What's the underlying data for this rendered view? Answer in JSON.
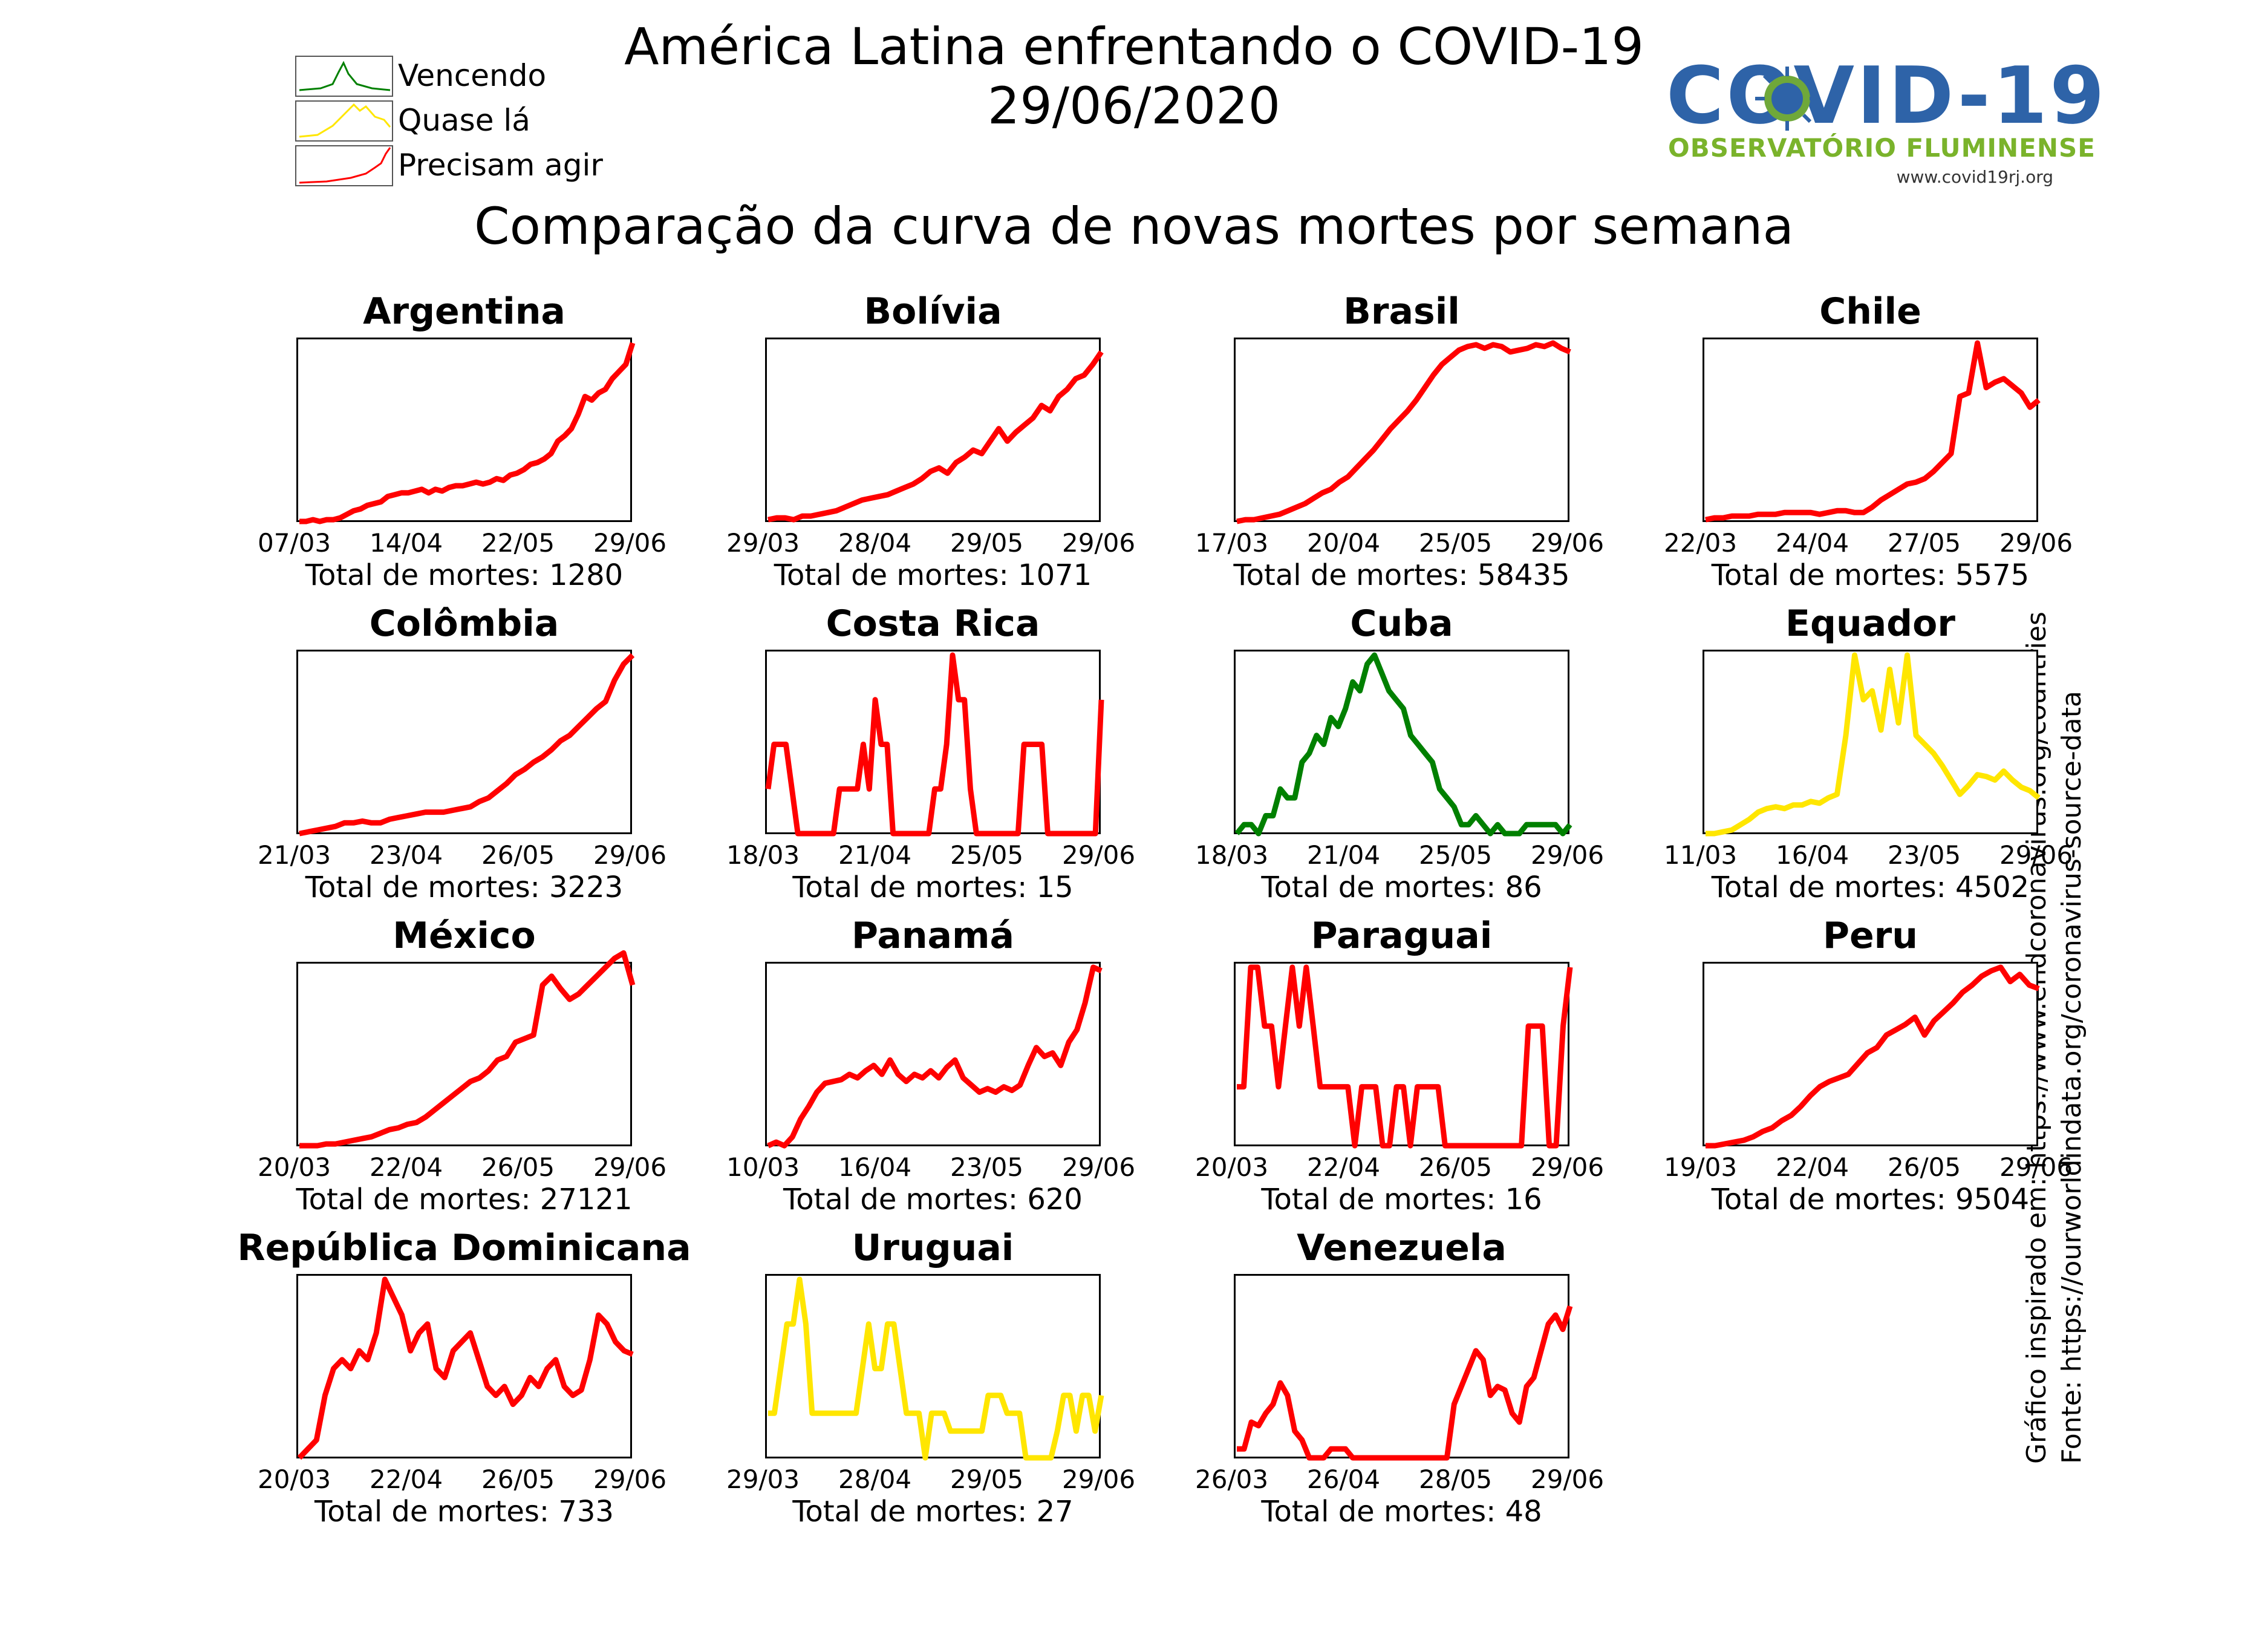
{
  "title": "América Latina enfrentando o COVID-19",
  "date": "29/06/2020",
  "subtitle": "Comparação da curva de novas mortes por semana",
  "legend": [
    {
      "label": "Vencendo",
      "color": "#008000",
      "icon": "green-bell-curve"
    },
    {
      "label": "Quase lá",
      "color": "#ffe600",
      "icon": "yellow-plateau-curve"
    },
    {
      "label": "Precisam agir",
      "color": "#ff0000",
      "icon": "red-rising-curve"
    }
  ],
  "logo": {
    "title": "COVID-19",
    "subtitle": "OBSERVATÓRIO FLUMINENSE",
    "url": "www.covid19rj.org",
    "colors": {
      "title": "#2e63a8",
      "subtitle": "#7ab32b"
    }
  },
  "side_notes": {
    "inspired": "Gráfico inspirado em: https://www.endcoronavirus.org/countries",
    "source": "Fonte: https://ourworldindata.org/coronavirus-source-data"
  },
  "total_prefix": "Total de mortes: ",
  "chart_data": [
    {
      "type": "line",
      "title": "Argentina",
      "status": "Precisam agir",
      "color": "#ff0000",
      "x_ticks": [
        "07/03",
        "14/04",
        "22/05",
        "29/06"
      ],
      "total": "1280",
      "values": [
        0,
        0,
        1,
        0,
        1,
        1,
        2,
        4,
        6,
        7,
        9,
        10,
        11,
        14,
        15,
        16,
        16,
        17,
        18,
        16,
        18,
        17,
        19,
        20,
        20,
        21,
        22,
        21,
        22,
        24,
        23,
        26,
        27,
        29,
        32,
        33,
        35,
        38,
        45,
        48,
        52,
        60,
        70,
        68,
        72,
        74,
        80,
        84,
        88,
        100
      ]
    },
    {
      "type": "line",
      "title": "Bolívia",
      "status": "Precisam agir",
      "color": "#ff0000",
      "x_ticks": [
        "29/03",
        "28/04",
        "29/05",
        "29/06"
      ],
      "total": "1071",
      "values": [
        1,
        2,
        2,
        1,
        3,
        3,
        4,
        5,
        6,
        8,
        10,
        12,
        13,
        14,
        15,
        17,
        19,
        21,
        24,
        28,
        30,
        27,
        33,
        36,
        40,
        38,
        45,
        52,
        45,
        50,
        54,
        58,
        65,
        62,
        70,
        74,
        80,
        82,
        88,
        95
      ]
    },
    {
      "type": "line",
      "title": "Brasil",
      "status": "Precisam agir",
      "color": "#ff0000",
      "x_ticks": [
        "17/03",
        "20/04",
        "25/05",
        "29/06"
      ],
      "total": "58435",
      "values": [
        0,
        1,
        1,
        2,
        3,
        4,
        6,
        8,
        10,
        13,
        16,
        18,
        22,
        25,
        30,
        35,
        40,
        46,
        52,
        57,
        62,
        68,
        75,
        82,
        88,
        92,
        96,
        98,
        99,
        97,
        99,
        98,
        95,
        96,
        97,
        99,
        98,
        100,
        97,
        95
      ]
    },
    {
      "type": "line",
      "title": "Chile",
      "status": "Precisam agir",
      "color": "#ff0000",
      "x_ticks": [
        "22/03",
        "24/04",
        "27/05",
        "29/06"
      ],
      "total": "5575",
      "values": [
        1,
        2,
        2,
        3,
        3,
        3,
        4,
        4,
        4,
        5,
        5,
        5,
        5,
        4,
        5,
        6,
        6,
        5,
        5,
        8,
        12,
        15,
        18,
        21,
        22,
        24,
        28,
        33,
        38,
        70,
        72,
        100,
        75,
        78,
        80,
        76,
        72,
        64,
        68
      ]
    },
    {
      "type": "line",
      "title": "Colômbia",
      "status": "Precisam agir",
      "color": "#ff0000",
      "x_ticks": [
        "21/03",
        "23/04",
        "26/05",
        "29/06"
      ],
      "total": "3223",
      "values": [
        0,
        1,
        2,
        3,
        4,
        6,
        6,
        7,
        6,
        6,
        8,
        9,
        10,
        11,
        12,
        12,
        12,
        13,
        14,
        15,
        18,
        20,
        24,
        28,
        33,
        36,
        40,
        43,
        47,
        52,
        55,
        60,
        65,
        70,
        74,
        86,
        95,
        100
      ]
    },
    {
      "type": "line",
      "title": "Costa Rica",
      "status": "Precisam agir",
      "color": "#ff0000",
      "x_ticks": [
        "18/03",
        "21/04",
        "25/05",
        "29/06"
      ],
      "total": "15",
      "values": [
        25,
        50,
        50,
        50,
        25,
        0,
        0,
        0,
        0,
        0,
        0,
        0,
        25,
        25,
        25,
        25,
        50,
        25,
        75,
        50,
        50,
        0,
        0,
        0,
        0,
        0,
        0,
        0,
        25,
        25,
        50,
        100,
        75,
        75,
        25,
        0,
        0,
        0,
        0,
        0,
        0,
        0,
        0,
        50,
        50,
        50,
        50,
        0,
        0,
        0,
        0,
        0,
        0,
        0,
        0,
        0,
        75
      ]
    },
    {
      "type": "line",
      "title": "Cuba",
      "status": "Vencendo",
      "color": "#008000",
      "x_ticks": [
        "18/03",
        "21/04",
        "25/05",
        "29/06"
      ],
      "total": "86",
      "values": [
        0,
        5,
        5,
        0,
        10,
        10,
        25,
        20,
        20,
        40,
        45,
        55,
        50,
        65,
        60,
        70,
        85,
        80,
        95,
        100,
        90,
        80,
        75,
        70,
        55,
        50,
        45,
        40,
        25,
        20,
        15,
        5,
        5,
        10,
        5,
        0,
        5,
        0,
        0,
        0,
        5,
        5,
        5,
        5,
        5,
        0,
        5
      ]
    },
    {
      "type": "line",
      "title": "Equador",
      "status": "Quase lá",
      "color": "#ffe600",
      "x_ticks": [
        "11/03",
        "16/04",
        "23/05",
        "29/06"
      ],
      "total": "4502",
      "values": [
        0,
        0,
        1,
        2,
        5,
        8,
        12,
        14,
        15,
        14,
        16,
        16,
        18,
        17,
        20,
        22,
        55,
        100,
        75,
        80,
        58,
        92,
        62,
        100,
        55,
        50,
        45,
        38,
        30,
        22,
        27,
        33,
        32,
        30,
        35,
        30,
        26,
        24,
        20
      ]
    },
    {
      "type": "line",
      "title": "México",
      "status": "Precisam agir",
      "color": "#ff0000",
      "x_ticks": [
        "20/03",
        "22/04",
        "26/05",
        "29/06"
      ],
      "total": "27121",
      "values": [
        0,
        0,
        0,
        1,
        1,
        2,
        3,
        4,
        5,
        7,
        9,
        10,
        12,
        13,
        16,
        20,
        24,
        28,
        32,
        36,
        38,
        42,
        48,
        50,
        58,
        60,
        62,
        90,
        95,
        88,
        82,
        85,
        90,
        95,
        100,
        105,
        108,
        90
      ]
    },
    {
      "type": "line",
      "title": "Panamá",
      "status": "Precisam agir",
      "color": "#ff0000",
      "x_ticks": [
        "10/03",
        "16/04",
        "23/05",
        "29/06"
      ],
      "total": "620",
      "values": [
        0,
        2,
        0,
        5,
        15,
        22,
        30,
        35,
        36,
        37,
        40,
        38,
        42,
        45,
        40,
        48,
        40,
        36,
        40,
        38,
        42,
        38,
        44,
        48,
        38,
        34,
        30,
        32,
        30,
        33,
        31,
        34,
        45,
        55,
        50,
        52,
        45,
        58,
        65,
        80,
        100,
        98
      ]
    },
    {
      "type": "line",
      "title": "Paraguai",
      "status": "Precisam agir",
      "color": "#ff0000",
      "x_ticks": [
        "20/03",
        "22/04",
        "26/05",
        "29/06"
      ],
      "total": "16",
      "values": [
        33,
        33,
        100,
        100,
        67,
        67,
        33,
        67,
        100,
        67,
        100,
        67,
        33,
        33,
        33,
        33,
        33,
        0,
        33,
        33,
        33,
        0,
        0,
        33,
        33,
        0,
        33,
        33,
        33,
        33,
        0,
        0,
        0,
        0,
        0,
        0,
        0,
        0,
        0,
        0,
        0,
        0,
        67,
        67,
        67,
        0,
        0,
        67,
        100
      ]
    },
    {
      "type": "line",
      "title": "Peru",
      "status": "Precisam agir",
      "color": "#ff0000",
      "x_ticks": [
        "19/03",
        "22/04",
        "26/05",
        "29/06"
      ],
      "total": "9504",
      "values": [
        0,
        0,
        1,
        2,
        3,
        5,
        8,
        10,
        14,
        17,
        22,
        28,
        33,
        36,
        38,
        40,
        46,
        52,
        55,
        62,
        65,
        68,
        72,
        62,
        70,
        75,
        80,
        86,
        90,
        95,
        98,
        100,
        92,
        96,
        90,
        88
      ]
    },
    {
      "type": "line",
      "title": "República Dominicana",
      "status": "Precisam agir",
      "color": "#ff0000",
      "x_ticks": [
        "20/03",
        "22/04",
        "26/05",
        "29/06"
      ],
      "total": "733",
      "values": [
        0,
        5,
        10,
        35,
        50,
        55,
        50,
        60,
        55,
        70,
        100,
        90,
        80,
        60,
        70,
        75,
        50,
        45,
        60,
        65,
        70,
        55,
        40,
        35,
        40,
        30,
        35,
        45,
        40,
        50,
        55,
        40,
        35,
        38,
        55,
        80,
        75,
        65,
        60,
        58
      ]
    },
    {
      "type": "line",
      "title": "Uruguai",
      "status": "Quase lá",
      "color": "#ffe600",
      "x_ticks": [
        "29/03",
        "28/04",
        "29/05",
        "29/06"
      ],
      "total": "27",
      "values": [
        25,
        25,
        50,
        75,
        75,
        100,
        75,
        25,
        25,
        25,
        25,
        25,
        25,
        25,
        25,
        50,
        75,
        50,
        50,
        75,
        75,
        50,
        25,
        25,
        25,
        0,
        25,
        25,
        25,
        15,
        15,
        15,
        15,
        15,
        15,
        35,
        35,
        35,
        25,
        25,
        25,
        0,
        0,
        0,
        0,
        0,
        15,
        35,
        35,
        15,
        35,
        35,
        15,
        35
      ]
    },
    {
      "type": "line",
      "title": "Venezuela",
      "status": "Precisam agir",
      "color": "#ff0000",
      "x_ticks": [
        "26/03",
        "26/04",
        "28/05",
        "29/06"
      ],
      "total": "48",
      "values": [
        5,
        5,
        20,
        18,
        25,
        30,
        42,
        35,
        15,
        10,
        0,
        0,
        0,
        5,
        5,
        5,
        0,
        0,
        0,
        0,
        0,
        0,
        0,
        0,
        0,
        0,
        0,
        0,
        0,
        0,
        30,
        40,
        50,
        60,
        55,
        35,
        40,
        38,
        25,
        20,
        40,
        45,
        60,
        75,
        80,
        72,
        85
      ]
    }
  ]
}
